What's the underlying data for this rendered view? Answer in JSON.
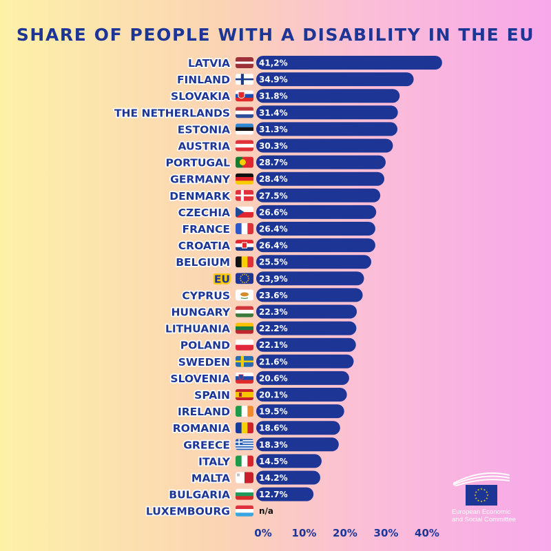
{
  "chart_data": {
    "type": "bar",
    "orientation": "horizontal",
    "title": "SHARE OF PEOPLE WITH A DISABILITY IN THE EU",
    "xlim": [
      0,
      40
    ],
    "xticks": [
      "0%",
      "10%",
      "20%",
      "30%",
      "40%"
    ],
    "bar_color": "#1d3696",
    "categories": [
      "LATVIA",
      "FINLAND",
      "SLOVAKIA",
      "THE NETHERLANDS",
      "ESTONIA",
      "AUSTRIA",
      "PORTUGAL",
      "GERMANY",
      "DENMARK",
      "CZECHIA",
      "FRANCE",
      "CROATIA",
      "BELGIUM",
      "EU",
      "CYPRUS",
      "HUNGARY",
      "LITHUANIA",
      "POLAND",
      "SWEDEN",
      "SLOVENIA",
      "SPAIN",
      "IRELAND",
      "ROMANIA",
      "GREECE",
      "ITALY",
      "MALTA",
      "BULGARIA",
      "LUXEMBOURG"
    ],
    "values": [
      41.2,
      34.9,
      31.8,
      31.4,
      31.3,
      30.3,
      28.7,
      28.4,
      27.5,
      26.6,
      26.4,
      26.4,
      25.5,
      23.9,
      23.6,
      22.3,
      22.2,
      22.1,
      21.6,
      20.6,
      20.1,
      19.5,
      18.6,
      18.3,
      14.5,
      14.2,
      12.7,
      null
    ],
    "value_labels": [
      "41,2%",
      "34.9%",
      "31.8%",
      "31.4%",
      "31.3%",
      "30.3%",
      "28.7%",
      "28.4%",
      "27.5%",
      "26.6%",
      "26.4%",
      "26.4%",
      "25.5%",
      "23,9%",
      "23.6%",
      "22.3%",
      "22.2%",
      "22.1%",
      "21.6%",
      "20.6%",
      "20.1%",
      "19.5%",
      "18.6%",
      "18.3%",
      "14.5%",
      "14.2%",
      "12.7%",
      "n/a"
    ],
    "flag_icons": [
      "flag-latvia",
      "flag-finland",
      "flag-slovakia",
      "flag-netherlands",
      "flag-estonia",
      "flag-austria",
      "flag-portugal",
      "flag-germany",
      "flag-denmark",
      "flag-czechia",
      "flag-france",
      "flag-croatia",
      "flag-belgium",
      "flag-eu",
      "flag-cyprus",
      "flag-hungary",
      "flag-lithuania",
      "flag-poland",
      "flag-sweden",
      "flag-slovenia",
      "flag-spain",
      "flag-ireland",
      "flag-romania",
      "flag-greece",
      "flag-italy",
      "flag-malta",
      "flag-bulgaria",
      "flag-luxembourg"
    ],
    "highlighted_category": "EU",
    "highlight_color": "#f7c80f"
  },
  "logo": {
    "icon": "eesc-logo-icon",
    "line1": "European Economic",
    "line2": "and Social Committee"
  }
}
